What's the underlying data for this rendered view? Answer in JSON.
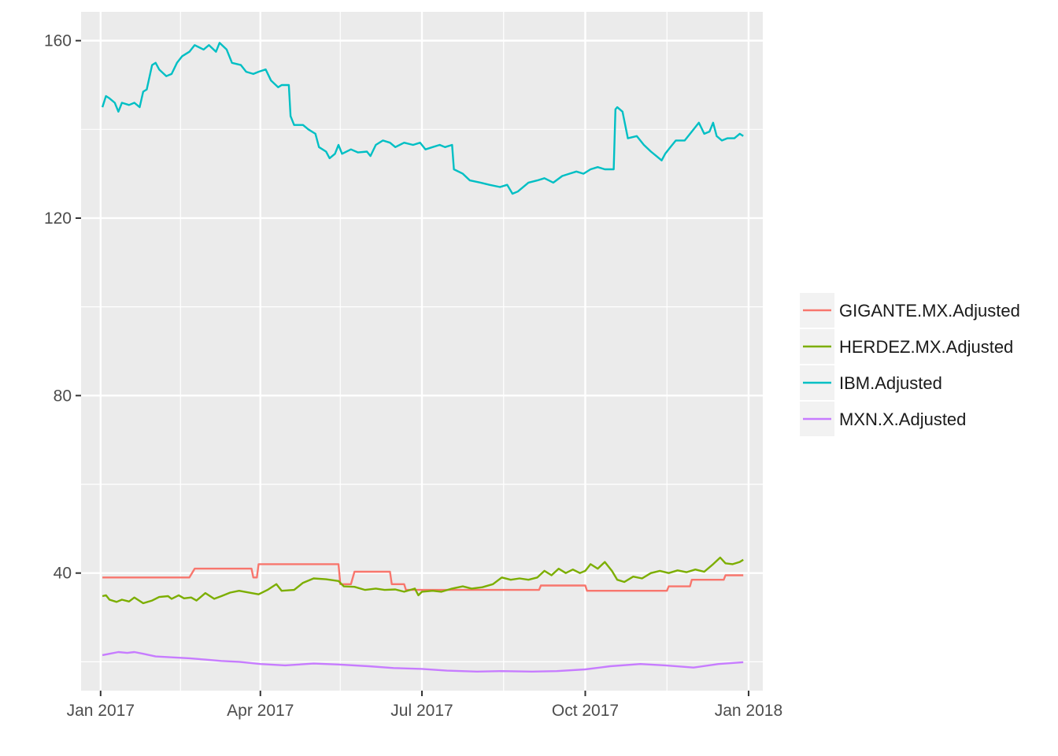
{
  "chart_data": {
    "type": "line",
    "title": "",
    "xlabel": "",
    "ylabel": "",
    "x_axis": {
      "type": "date",
      "range": [
        "2016-12-21",
        "2018-01-09"
      ],
      "ticks": [
        {
          "date": "2017-01-01",
          "label": "Jan 2017"
        },
        {
          "date": "2017-04-01",
          "label": "Apr 2017"
        },
        {
          "date": "2017-07-01",
          "label": "Jul 2017"
        },
        {
          "date": "2017-10-01",
          "label": "Oct 2017"
        },
        {
          "date": "2018-01-01",
          "label": "Jan 2018"
        }
      ],
      "minor_ticks": [
        "2017-02-15",
        "2017-05-16",
        "2017-08-16",
        "2017-11-16"
      ]
    },
    "y_axis": {
      "range": [
        13.5,
        166.5
      ],
      "ticks": [
        40,
        80,
        120,
        160
      ],
      "minor_ticks": [
        20,
        60,
        100,
        140
      ]
    },
    "grid": true,
    "legend": {
      "position": "right",
      "entries": [
        {
          "name": "GIGANTE.MX.Adjusted",
          "color": "#F8766D"
        },
        {
          "name": "HERDEZ.MX.Adjusted",
          "color": "#7CAE00"
        },
        {
          "name": "IBM.Adjusted",
          "color": "#00BFC4"
        },
        {
          "name": "MXN.X.Adjusted",
          "color": "#C77CFF"
        }
      ]
    },
    "series": [
      {
        "name": "GIGANTE.MX.Adjusted",
        "color": "#F8766D",
        "points": [
          [
            "2017-01-02",
            39.0
          ],
          [
            "2017-02-20",
            39.0
          ],
          [
            "2017-02-23",
            41.0
          ],
          [
            "2017-03-27",
            41.0
          ],
          [
            "2017-03-28",
            39.0
          ],
          [
            "2017-03-30",
            39.0
          ],
          [
            "2017-03-31",
            42.0
          ],
          [
            "2017-05-15",
            42.0
          ],
          [
            "2017-05-16",
            37.5
          ],
          [
            "2017-05-22",
            37.5
          ],
          [
            "2017-05-24",
            40.3
          ],
          [
            "2017-06-13",
            40.3
          ],
          [
            "2017-06-14",
            37.5
          ],
          [
            "2017-06-21",
            37.5
          ],
          [
            "2017-06-22",
            36.2
          ],
          [
            "2017-09-05",
            36.2
          ],
          [
            "2017-09-06",
            37.2
          ],
          [
            "2017-10-01",
            37.2
          ],
          [
            "2017-10-02",
            36.0
          ],
          [
            "2017-11-16",
            36.0
          ],
          [
            "2017-11-17",
            37.0
          ],
          [
            "2017-11-29",
            37.0
          ],
          [
            "2017-11-30",
            38.5
          ],
          [
            "2017-12-18",
            38.5
          ],
          [
            "2017-12-19",
            39.5
          ],
          [
            "2017-12-29",
            39.5
          ]
        ]
      },
      {
        "name": "HERDEZ.MX.Adjusted",
        "color": "#7CAE00",
        "points": [
          [
            "2017-01-02",
            34.8
          ],
          [
            "2017-01-04",
            35.0
          ],
          [
            "2017-01-06",
            34.0
          ],
          [
            "2017-01-10",
            33.5
          ],
          [
            "2017-01-13",
            34.0
          ],
          [
            "2017-01-17",
            33.6
          ],
          [
            "2017-01-20",
            34.5
          ],
          [
            "2017-01-25",
            33.2
          ],
          [
            "2017-01-30",
            33.8
          ],
          [
            "2017-02-03",
            34.6
          ],
          [
            "2017-02-08",
            34.8
          ],
          [
            "2017-02-10",
            34.2
          ],
          [
            "2017-02-14",
            35.0
          ],
          [
            "2017-02-17",
            34.3
          ],
          [
            "2017-02-21",
            34.5
          ],
          [
            "2017-02-24",
            33.8
          ],
          [
            "2017-03-01",
            35.5
          ],
          [
            "2017-03-06",
            34.2
          ],
          [
            "2017-03-10",
            34.8
          ],
          [
            "2017-03-15",
            35.6
          ],
          [
            "2017-03-20",
            36.0
          ],
          [
            "2017-03-27",
            35.5
          ],
          [
            "2017-03-31",
            35.2
          ],
          [
            "2017-04-05",
            36.2
          ],
          [
            "2017-04-10",
            37.5
          ],
          [
            "2017-04-13",
            36.0
          ],
          [
            "2017-04-20",
            36.2
          ],
          [
            "2017-04-25",
            37.8
          ],
          [
            "2017-05-01",
            38.8
          ],
          [
            "2017-05-08",
            38.6
          ],
          [
            "2017-05-15",
            38.2
          ],
          [
            "2017-05-18",
            37.0
          ],
          [
            "2017-05-24",
            36.9
          ],
          [
            "2017-05-30",
            36.2
          ],
          [
            "2017-06-05",
            36.5
          ],
          [
            "2017-06-10",
            36.2
          ],
          [
            "2017-06-16",
            36.3
          ],
          [
            "2017-06-21",
            35.8
          ],
          [
            "2017-06-27",
            36.5
          ],
          [
            "2017-06-29",
            35.0
          ],
          [
            "2017-07-01",
            35.8
          ],
          [
            "2017-07-07",
            36.0
          ],
          [
            "2017-07-12",
            35.8
          ],
          [
            "2017-07-18",
            36.5
          ],
          [
            "2017-07-24",
            37.0
          ],
          [
            "2017-07-29",
            36.5
          ],
          [
            "2017-08-04",
            36.8
          ],
          [
            "2017-08-10",
            37.5
          ],
          [
            "2017-08-15",
            39.0
          ],
          [
            "2017-08-20",
            38.5
          ],
          [
            "2017-08-25",
            38.8
          ],
          [
            "2017-08-30",
            38.5
          ],
          [
            "2017-09-04",
            39.0
          ],
          [
            "2017-09-08",
            40.5
          ],
          [
            "2017-09-12",
            39.5
          ],
          [
            "2017-09-16",
            41.0
          ],
          [
            "2017-09-20",
            40.0
          ],
          [
            "2017-09-24",
            40.8
          ],
          [
            "2017-09-28",
            40.0
          ],
          [
            "2017-10-01",
            40.5
          ],
          [
            "2017-10-04",
            42.0
          ],
          [
            "2017-10-08",
            41.0
          ],
          [
            "2017-10-12",
            42.5
          ],
          [
            "2017-10-16",
            40.5
          ],
          [
            "2017-10-19",
            38.5
          ],
          [
            "2017-10-23",
            38.0
          ],
          [
            "2017-10-28",
            39.2
          ],
          [
            "2017-11-02",
            38.8
          ],
          [
            "2017-11-07",
            40.0
          ],
          [
            "2017-11-12",
            40.5
          ],
          [
            "2017-11-17",
            40.0
          ],
          [
            "2017-11-22",
            40.6
          ],
          [
            "2017-11-27",
            40.2
          ],
          [
            "2017-12-02",
            40.8
          ],
          [
            "2017-12-07",
            40.3
          ],
          [
            "2017-12-12",
            42.0
          ],
          [
            "2017-12-16",
            43.5
          ],
          [
            "2017-12-19",
            42.2
          ],
          [
            "2017-12-23",
            42.0
          ],
          [
            "2017-12-27",
            42.5
          ],
          [
            "2017-12-29",
            43.0
          ]
        ]
      },
      {
        "name": "IBM.Adjusted",
        "color": "#00BFC4",
        "points": [
          [
            "2017-01-02",
            145.0
          ],
          [
            "2017-01-04",
            147.5
          ],
          [
            "2017-01-06",
            147.0
          ],
          [
            "2017-01-09",
            146.0
          ],
          [
            "2017-01-11",
            144.0
          ],
          [
            "2017-01-13",
            146.0
          ],
          [
            "2017-01-17",
            145.5
          ],
          [
            "2017-01-20",
            146.0
          ],
          [
            "2017-01-23",
            145.0
          ],
          [
            "2017-01-25",
            148.5
          ],
          [
            "2017-01-27",
            149.0
          ],
          [
            "2017-01-30",
            154.5
          ],
          [
            "2017-02-01",
            155.0
          ],
          [
            "2017-02-03",
            153.5
          ],
          [
            "2017-02-07",
            152.0
          ],
          [
            "2017-02-10",
            152.5
          ],
          [
            "2017-02-13",
            155.0
          ],
          [
            "2017-02-16",
            156.5
          ],
          [
            "2017-02-20",
            157.5
          ],
          [
            "2017-02-23",
            159.0
          ],
          [
            "2017-02-28",
            158.0
          ],
          [
            "2017-03-03",
            159.0
          ],
          [
            "2017-03-07",
            157.5
          ],
          [
            "2017-03-09",
            159.5
          ],
          [
            "2017-03-13",
            158.0
          ],
          [
            "2017-03-16",
            155.0
          ],
          [
            "2017-03-21",
            154.5
          ],
          [
            "2017-03-24",
            153.0
          ],
          [
            "2017-03-28",
            152.5
          ],
          [
            "2017-03-31",
            153.0
          ],
          [
            "2017-04-04",
            153.5
          ],
          [
            "2017-04-07",
            151.0
          ],
          [
            "2017-04-11",
            149.5
          ],
          [
            "2017-04-13",
            150.0
          ],
          [
            "2017-04-17",
            150.0
          ],
          [
            "2017-04-18",
            143.0
          ],
          [
            "2017-04-20",
            141.0
          ],
          [
            "2017-04-25",
            141.0
          ],
          [
            "2017-04-28",
            140.0
          ],
          [
            "2017-05-02",
            139.0
          ],
          [
            "2017-05-04",
            136.0
          ],
          [
            "2017-05-08",
            135.0
          ],
          [
            "2017-05-10",
            133.5
          ],
          [
            "2017-05-13",
            134.5
          ],
          [
            "2017-05-15",
            136.5
          ],
          [
            "2017-05-17",
            134.5
          ],
          [
            "2017-05-22",
            135.5
          ],
          [
            "2017-05-26",
            134.8
          ],
          [
            "2017-05-31",
            135.0
          ],
          [
            "2017-06-02",
            134.0
          ],
          [
            "2017-06-05",
            136.5
          ],
          [
            "2017-06-09",
            137.5
          ],
          [
            "2017-06-13",
            137.0
          ],
          [
            "2017-06-16",
            136.0
          ],
          [
            "2017-06-21",
            137.0
          ],
          [
            "2017-06-26",
            136.5
          ],
          [
            "2017-06-30",
            137.0
          ],
          [
            "2017-07-03",
            135.5
          ],
          [
            "2017-07-07",
            136.0
          ],
          [
            "2017-07-11",
            136.5
          ],
          [
            "2017-07-14",
            136.0
          ],
          [
            "2017-07-18",
            136.5
          ],
          [
            "2017-07-19",
            131.0
          ],
          [
            "2017-07-24",
            130.0
          ],
          [
            "2017-07-28",
            128.5
          ],
          [
            "2017-08-03",
            128.0
          ],
          [
            "2017-08-08",
            127.5
          ],
          [
            "2017-08-14",
            127.0
          ],
          [
            "2017-08-18",
            127.5
          ],
          [
            "2017-08-21",
            125.5
          ],
          [
            "2017-08-24",
            126.0
          ],
          [
            "2017-08-30",
            128.0
          ],
          [
            "2017-09-04",
            128.5
          ],
          [
            "2017-09-08",
            129.0
          ],
          [
            "2017-09-13",
            128.0
          ],
          [
            "2017-09-18",
            129.5
          ],
          [
            "2017-09-22",
            130.0
          ],
          [
            "2017-09-26",
            130.5
          ],
          [
            "2017-09-30",
            130.0
          ],
          [
            "2017-10-04",
            131.0
          ],
          [
            "2017-10-08",
            131.5
          ],
          [
            "2017-10-12",
            131.0
          ],
          [
            "2017-10-17",
            131.0
          ],
          [
            "2017-10-18",
            144.5
          ],
          [
            "2017-10-19",
            145.0
          ],
          [
            "2017-10-22",
            144.0
          ],
          [
            "2017-10-25",
            138.0
          ],
          [
            "2017-10-30",
            138.5
          ],
          [
            "2017-11-03",
            136.5
          ],
          [
            "2017-11-07",
            135.0
          ],
          [
            "2017-11-10",
            134.0
          ],
          [
            "2017-11-13",
            133.0
          ],
          [
            "2017-11-15",
            134.5
          ],
          [
            "2017-11-18",
            136.0
          ],
          [
            "2017-11-21",
            137.5
          ],
          [
            "2017-11-26",
            137.5
          ],
          [
            "2017-11-30",
            139.5
          ],
          [
            "2017-12-04",
            141.5
          ],
          [
            "2017-12-07",
            139.0
          ],
          [
            "2017-12-10",
            139.5
          ],
          [
            "2017-12-12",
            141.5
          ],
          [
            "2017-12-14",
            138.5
          ],
          [
            "2017-12-17",
            137.5
          ],
          [
            "2017-12-20",
            138.0
          ],
          [
            "2017-12-24",
            138.0
          ],
          [
            "2017-12-27",
            139.0
          ],
          [
            "2017-12-29",
            138.5
          ]
        ]
      },
      {
        "name": "MXN.X.Adjusted",
        "color": "#C77CFF",
        "points": [
          [
            "2017-01-02",
            21.5
          ],
          [
            "2017-01-06",
            21.8
          ],
          [
            "2017-01-11",
            22.2
          ],
          [
            "2017-01-16",
            22.0
          ],
          [
            "2017-01-20",
            22.2
          ],
          [
            "2017-01-25",
            21.8
          ],
          [
            "2017-02-01",
            21.2
          ],
          [
            "2017-02-10",
            21.0
          ],
          [
            "2017-02-20",
            20.8
          ],
          [
            "2017-03-01",
            20.5
          ],
          [
            "2017-03-10",
            20.2
          ],
          [
            "2017-03-20",
            20.0
          ],
          [
            "2017-04-01",
            19.5
          ],
          [
            "2017-04-15",
            19.2
          ],
          [
            "2017-05-01",
            19.6
          ],
          [
            "2017-05-15",
            19.4
          ],
          [
            "2017-06-01",
            19.0
          ],
          [
            "2017-06-15",
            18.6
          ],
          [
            "2017-07-01",
            18.4
          ],
          [
            "2017-07-15",
            18.0
          ],
          [
            "2017-08-01",
            17.8
          ],
          [
            "2017-08-15",
            17.9
          ],
          [
            "2017-09-01",
            17.8
          ],
          [
            "2017-09-15",
            17.9
          ],
          [
            "2017-10-01",
            18.3
          ],
          [
            "2017-10-15",
            19.0
          ],
          [
            "2017-11-01",
            19.5
          ],
          [
            "2017-11-15",
            19.2
          ],
          [
            "2017-12-01",
            18.7
          ],
          [
            "2017-12-15",
            19.5
          ],
          [
            "2017-12-29",
            19.9
          ]
        ]
      }
    ]
  }
}
